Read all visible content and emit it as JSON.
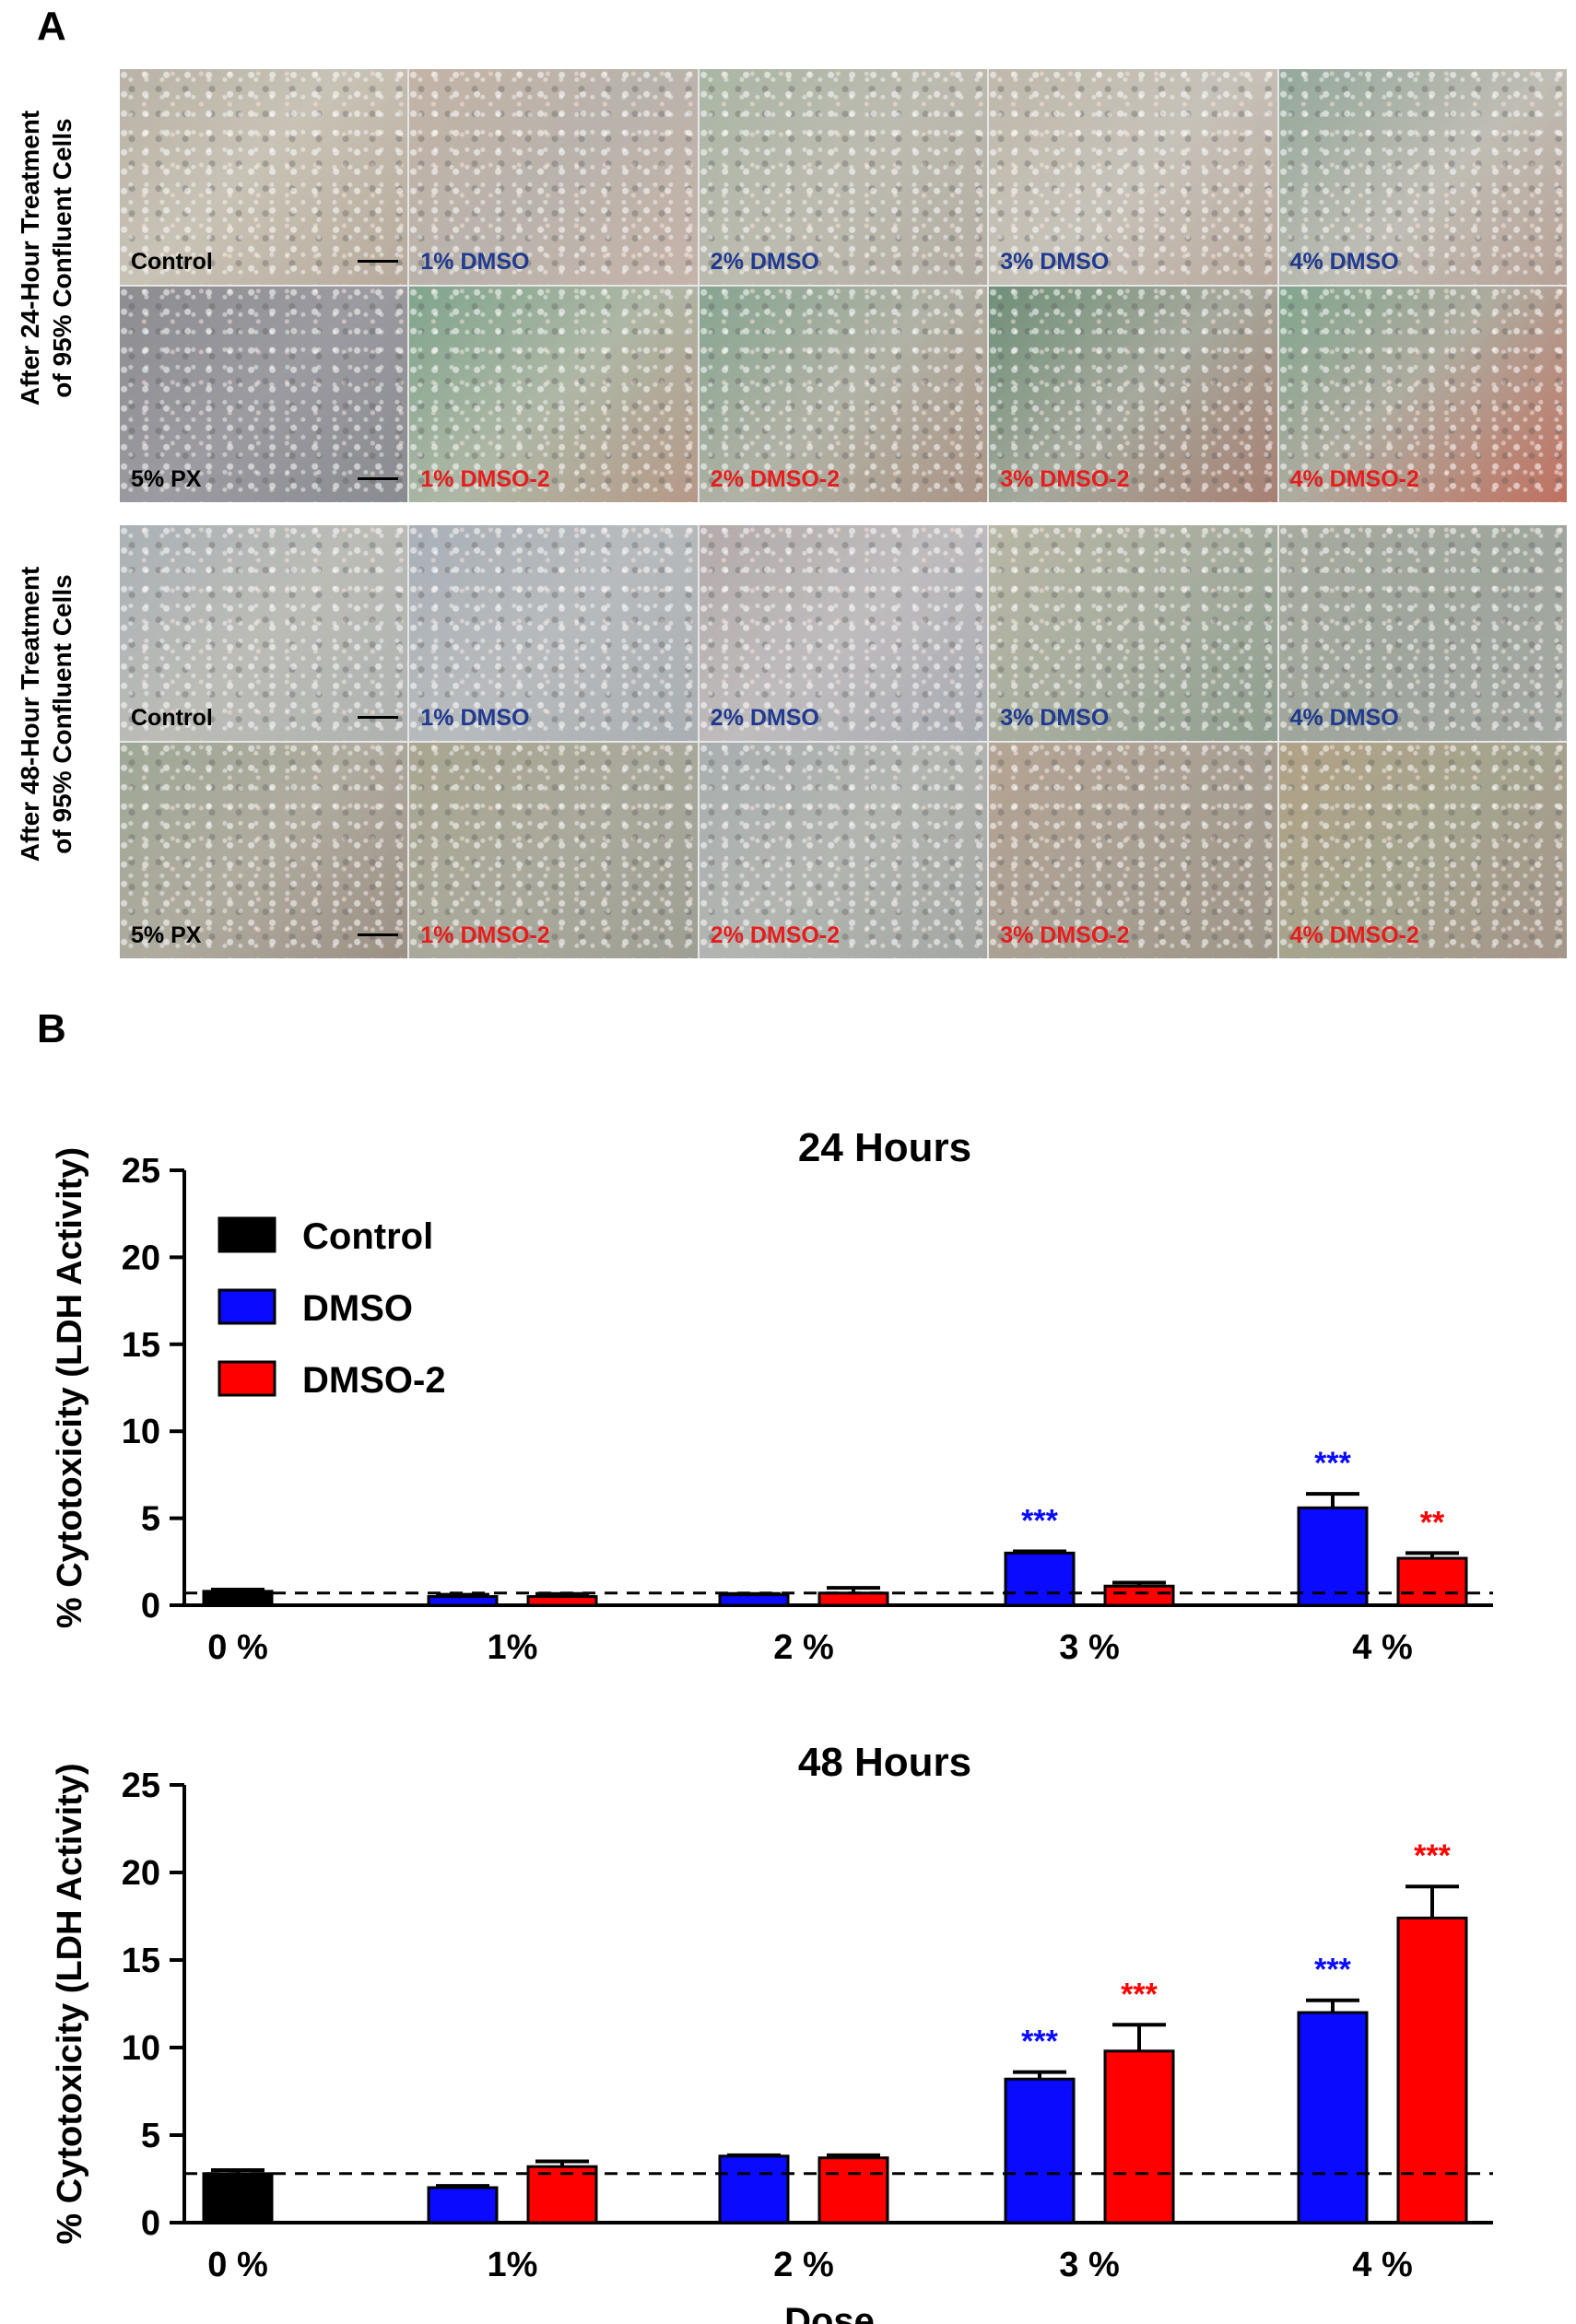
{
  "panels": {
    "a_label": "A",
    "b_label": "B"
  },
  "micrographs": {
    "row_groups": [
      {
        "side_label_line1": "After 24-Hour Treatment",
        "side_label_line2": "of 95% Confluent Cells",
        "top_row": [
          "Control",
          "1% DMSO",
          "2% DMSO",
          "3% DMSO",
          "4% DMSO"
        ],
        "bottom_row": [
          "5% PX",
          "1% DMSO-2",
          "2% DMSO-2",
          "3% DMSO-2",
          "4% DMSO-2"
        ]
      },
      {
        "side_label_line1": "After 48-Hour Treatment",
        "side_label_line2": "of 95% Confluent Cells",
        "top_row": [
          "Control",
          "1% DMSO",
          "2% DMSO",
          "3% DMSO",
          "4% DMSO"
        ],
        "bottom_row": [
          "5% PX",
          "1% DMSO-2",
          "2% DMSO-2",
          "3% DMSO-2",
          "4% DMSO-2"
        ]
      }
    ]
  },
  "colors": {
    "control": "#000000",
    "dmso": "#0a0aff",
    "dmso2": "#ff0000",
    "label_blue": "#1f3a8f",
    "label_red": "#e41e1e"
  },
  "chart_data": [
    {
      "type": "bar",
      "title": "24 Hours",
      "ylabel": "% Cytotoxicity (LDH Activity)",
      "xlabel": "",
      "ylim": [
        0,
        25
      ],
      "yticks": [
        0,
        5,
        10,
        15,
        20,
        25
      ],
      "categories": [
        "0 %",
        "1%",
        "2 %",
        "3 %",
        "4 %"
      ],
      "legend": [
        "Control",
        "DMSO",
        "DMSO-2"
      ],
      "baseline": 0.7,
      "series": [
        {
          "name": "Control",
          "values": [
            0.8,
            null,
            null,
            null,
            null
          ],
          "errors": [
            0.1,
            null,
            null,
            null,
            null
          ],
          "sig": [
            "",
            "",
            "",
            "",
            ""
          ]
        },
        {
          "name": "DMSO",
          "values": [
            null,
            0.5,
            0.6,
            3.0,
            5.6
          ],
          "errors": [
            null,
            0.1,
            0.05,
            0.1,
            0.8
          ],
          "sig": [
            "",
            "",
            "",
            "***",
            "***"
          ]
        },
        {
          "name": "DMSO-2",
          "values": [
            null,
            0.5,
            0.7,
            1.1,
            2.7
          ],
          "errors": [
            null,
            0.15,
            0.3,
            0.2,
            0.3
          ],
          "sig": [
            "",
            "",
            "",
            "",
            "**"
          ]
        }
      ]
    },
    {
      "type": "bar",
      "title": "48 Hours",
      "ylabel": "% Cytotoxicity (LDH Activity)",
      "xlabel": "Dose",
      "ylim": [
        0,
        25
      ],
      "yticks": [
        0,
        5,
        10,
        15,
        20,
        25
      ],
      "categories": [
        "0 %",
        "1%",
        "2 %",
        "3 %",
        "4 %"
      ],
      "legend": [],
      "baseline": 2.8,
      "series": [
        {
          "name": "Control",
          "values": [
            2.8,
            null,
            null,
            null,
            null
          ],
          "errors": [
            0.2,
            null,
            null,
            null,
            null
          ],
          "sig": [
            "",
            "",
            "",
            "",
            ""
          ]
        },
        {
          "name": "DMSO",
          "values": [
            null,
            2.0,
            3.8,
            8.2,
            12.0
          ],
          "errors": [
            null,
            0.1,
            0.05,
            0.4,
            0.7
          ],
          "sig": [
            "",
            "",
            "",
            "***",
            "***"
          ]
        },
        {
          "name": "DMSO-2",
          "values": [
            null,
            3.2,
            3.7,
            9.8,
            17.4
          ],
          "errors": [
            null,
            0.3,
            0.15,
            1.5,
            1.8
          ],
          "sig": [
            "",
            "",
            "",
            "***",
            "***"
          ]
        }
      ]
    }
  ]
}
